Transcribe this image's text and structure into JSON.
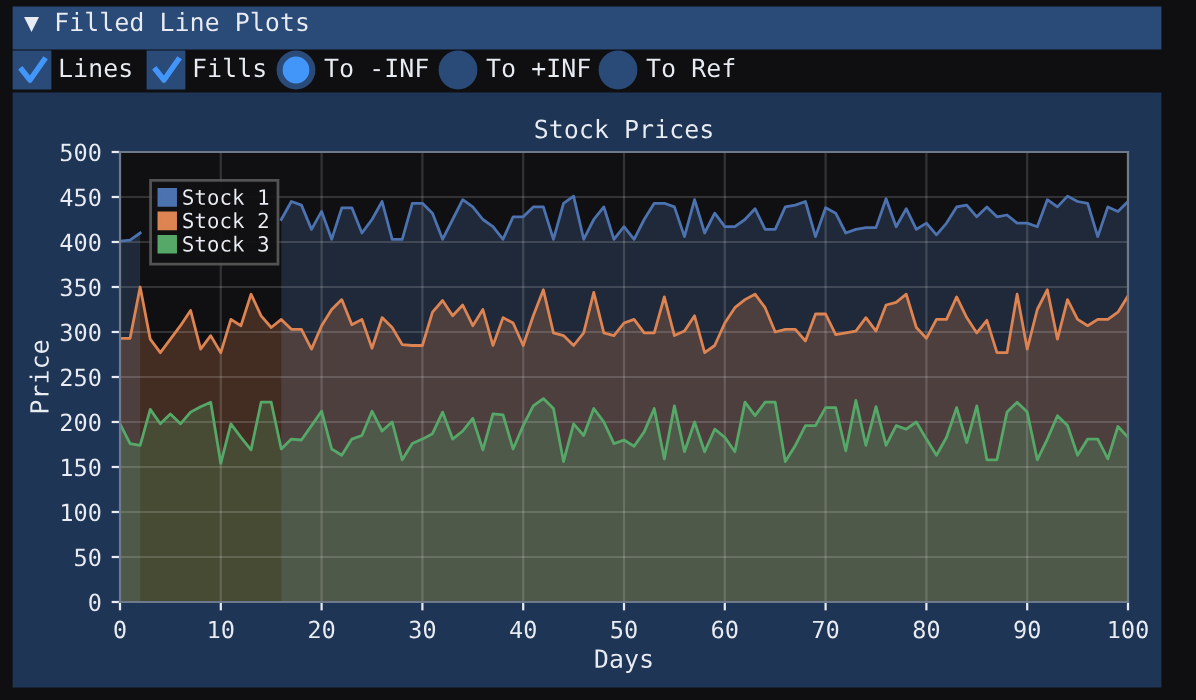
{
  "chart_data": {
    "type": "area",
    "title": "Stock Prices",
    "xlabel": "Days",
    "ylabel": "Price",
    "annotations": [
      "▼ Filled Line Plots",
      "Lines",
      "Fills",
      "To -INF",
      "To +INF",
      "To Ref"
    ],
    "x": [
      0,
      1,
      2,
      3,
      4,
      5,
      6,
      7,
      8,
      9,
      10,
      11,
      12,
      13,
      14,
      15,
      16,
      17,
      18,
      19,
      20,
      21,
      22,
      23,
      24,
      25,
      26,
      27,
      28,
      29,
      30,
      31,
      32,
      33,
      34,
      35,
      36,
      37,
      38,
      39,
      40,
      41,
      42,
      43,
      44,
      45,
      46,
      47,
      48,
      49,
      50,
      51,
      52,
      53,
      54,
      55,
      56,
      57,
      58,
      59,
      60,
      61,
      62,
      63,
      64,
      65,
      66,
      67,
      68,
      69,
      70,
      71,
      72,
      73,
      74,
      75,
      76,
      77,
      78,
      79,
      80,
      81,
      82,
      83,
      84,
      85,
      86,
      87,
      88,
      89,
      90,
      91,
      92,
      93,
      94,
      95,
      96,
      97,
      98,
      99,
      100
    ],
    "series": [
      {
        "name": "Stock 1",
        "color": "#4c72b0",
        "values": [
          401,
          402,
          410,
          null,
          null,
          null,
          null,
          null,
          null,
          null,
          null,
          null,
          null,
          null,
          null,
          null,
          425,
          445,
          441,
          414,
          434,
          403,
          438,
          438,
          410,
          425,
          445,
          403,
          403,
          443,
          443,
          432,
          403,
          425,
          447,
          439,
          425,
          417,
          403,
          428,
          428,
          439,
          439,
          403,
          443,
          451,
          403,
          425,
          439,
          403,
          417,
          403,
          425,
          443,
          443,
          439,
          406,
          447,
          410,
          432,
          417,
          417,
          425,
          437,
          414,
          414,
          439,
          441,
          445,
          406,
          438,
          432,
          410,
          414,
          416,
          416,
          448,
          417,
          437,
          414,
          421,
          408,
          421,
          439,
          441,
          428,
          439,
          428,
          430,
          421,
          421,
          417,
          447,
          439,
          451,
          445,
          443,
          406,
          439,
          434,
          445
        ]
      },
      {
        "name": "Stock 2",
        "color": "#dd8452",
        "values": [
          293,
          293,
          350,
          292,
          277,
          292,
          307,
          324,
          281,
          296,
          277,
          314,
          307,
          342,
          318,
          305,
          314,
          303,
          303,
          281,
          307,
          325,
          336,
          308,
          314,
          282,
          316,
          305,
          286,
          285,
          285,
          322,
          335,
          318,
          330,
          307,
          325,
          285,
          316,
          310,
          285,
          318,
          347,
          299,
          296,
          285,
          299,
          344,
          299,
          296,
          310,
          314,
          299,
          299,
          339,
          296,
          301,
          318,
          277,
          285,
          310,
          327,
          336,
          342,
          327,
          300,
          303,
          303,
          290,
          320,
          320,
          297,
          299,
          301,
          316,
          301,
          330,
          333,
          342,
          305,
          293,
          314,
          314,
          339,
          316,
          299,
          313,
          277,
          277,
          342,
          281,
          325,
          347,
          292,
          336,
          314,
          307,
          314,
          314,
          322,
          340
        ]
      },
      {
        "name": "Stock 3",
        "color": "#55a868",
        "values": [
          198,
          176,
          174,
          214,
          198,
          209,
          198,
          211,
          217,
          222,
          154,
          198,
          183,
          169,
          222,
          222,
          170,
          181,
          180,
          196,
          212,
          170,
          163,
          181,
          185,
          212,
          190,
          200,
          158,
          176,
          181,
          187,
          211,
          181,
          190,
          204,
          169,
          209,
          208,
          170,
          196,
          218,
          226,
          215,
          156,
          198,
          185,
          215,
          200,
          176,
          180,
          173,
          189,
          215,
          159,
          218,
          167,
          200,
          167,
          192,
          183,
          167,
          222,
          207,
          222,
          222,
          156,
          174,
          196,
          196,
          216,
          216,
          168,
          224,
          174,
          217,
          174,
          196,
          192,
          200,
          181,
          163,
          183,
          216,
          177,
          218,
          158,
          158,
          211,
          222,
          211,
          158,
          181,
          207,
          196,
          163,
          181,
          181,
          159,
          195,
          183
        ]
      }
    ],
    "xlim": [
      0,
      100
    ],
    "xticks": [
      0,
      10,
      20,
      30,
      40,
      50,
      60,
      70,
      80,
      90,
      100
    ],
    "ylim": [
      0,
      500
    ],
    "yticks": [
      0,
      50,
      100,
      150,
      200,
      250,
      300,
      350,
      400,
      450,
      500
    ],
    "grid": true,
    "legend": "top left",
    "marker": "none",
    "line_style": "solid"
  }
}
